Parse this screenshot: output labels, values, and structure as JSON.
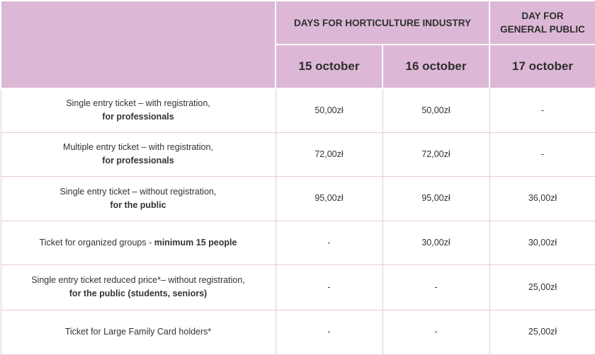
{
  "header": {
    "industry_days": "DAYS FOR HORTICULTURE INDUSTRY",
    "public_day_line1": "DAY FOR",
    "public_day_line2": "GENERAL PUBLIC",
    "dates": [
      "15 october",
      "16 october",
      "17 october"
    ]
  },
  "rows": [
    {
      "label": "Single entry ticket – with registration,",
      "label_bold": "for professionals",
      "prices": [
        "50,00zł",
        "50,00zł",
        "-"
      ]
    },
    {
      "label": "Multiple entry ticket – with registration,",
      "label_bold": "for professionals",
      "prices": [
        "72,00zł",
        "72,00zł",
        "-"
      ]
    },
    {
      "label": "Single entry ticket – without registration,",
      "label_bold": "for the public",
      "prices": [
        "95,00zł",
        "95,00zł",
        "36,00zł"
      ]
    },
    {
      "label": "Ticket for organized groups - ",
      "label_bold": "minimum 15 people",
      "prices": [
        "-",
        "30,00zł",
        "30,00zł"
      ]
    },
    {
      "label": "Single entry ticket reduced price*– without registration,",
      "label_bold": "for the public (students, seniors)",
      "prices": [
        "-",
        "-",
        "25,00zł"
      ]
    },
    {
      "label": "Ticket for Large Family Card holders*",
      "prices": [
        "-",
        "-",
        "25,00zł"
      ]
    }
  ],
  "colors": {
    "header_bg": "#dcb8d6",
    "border": "#e6c8e0"
  }
}
